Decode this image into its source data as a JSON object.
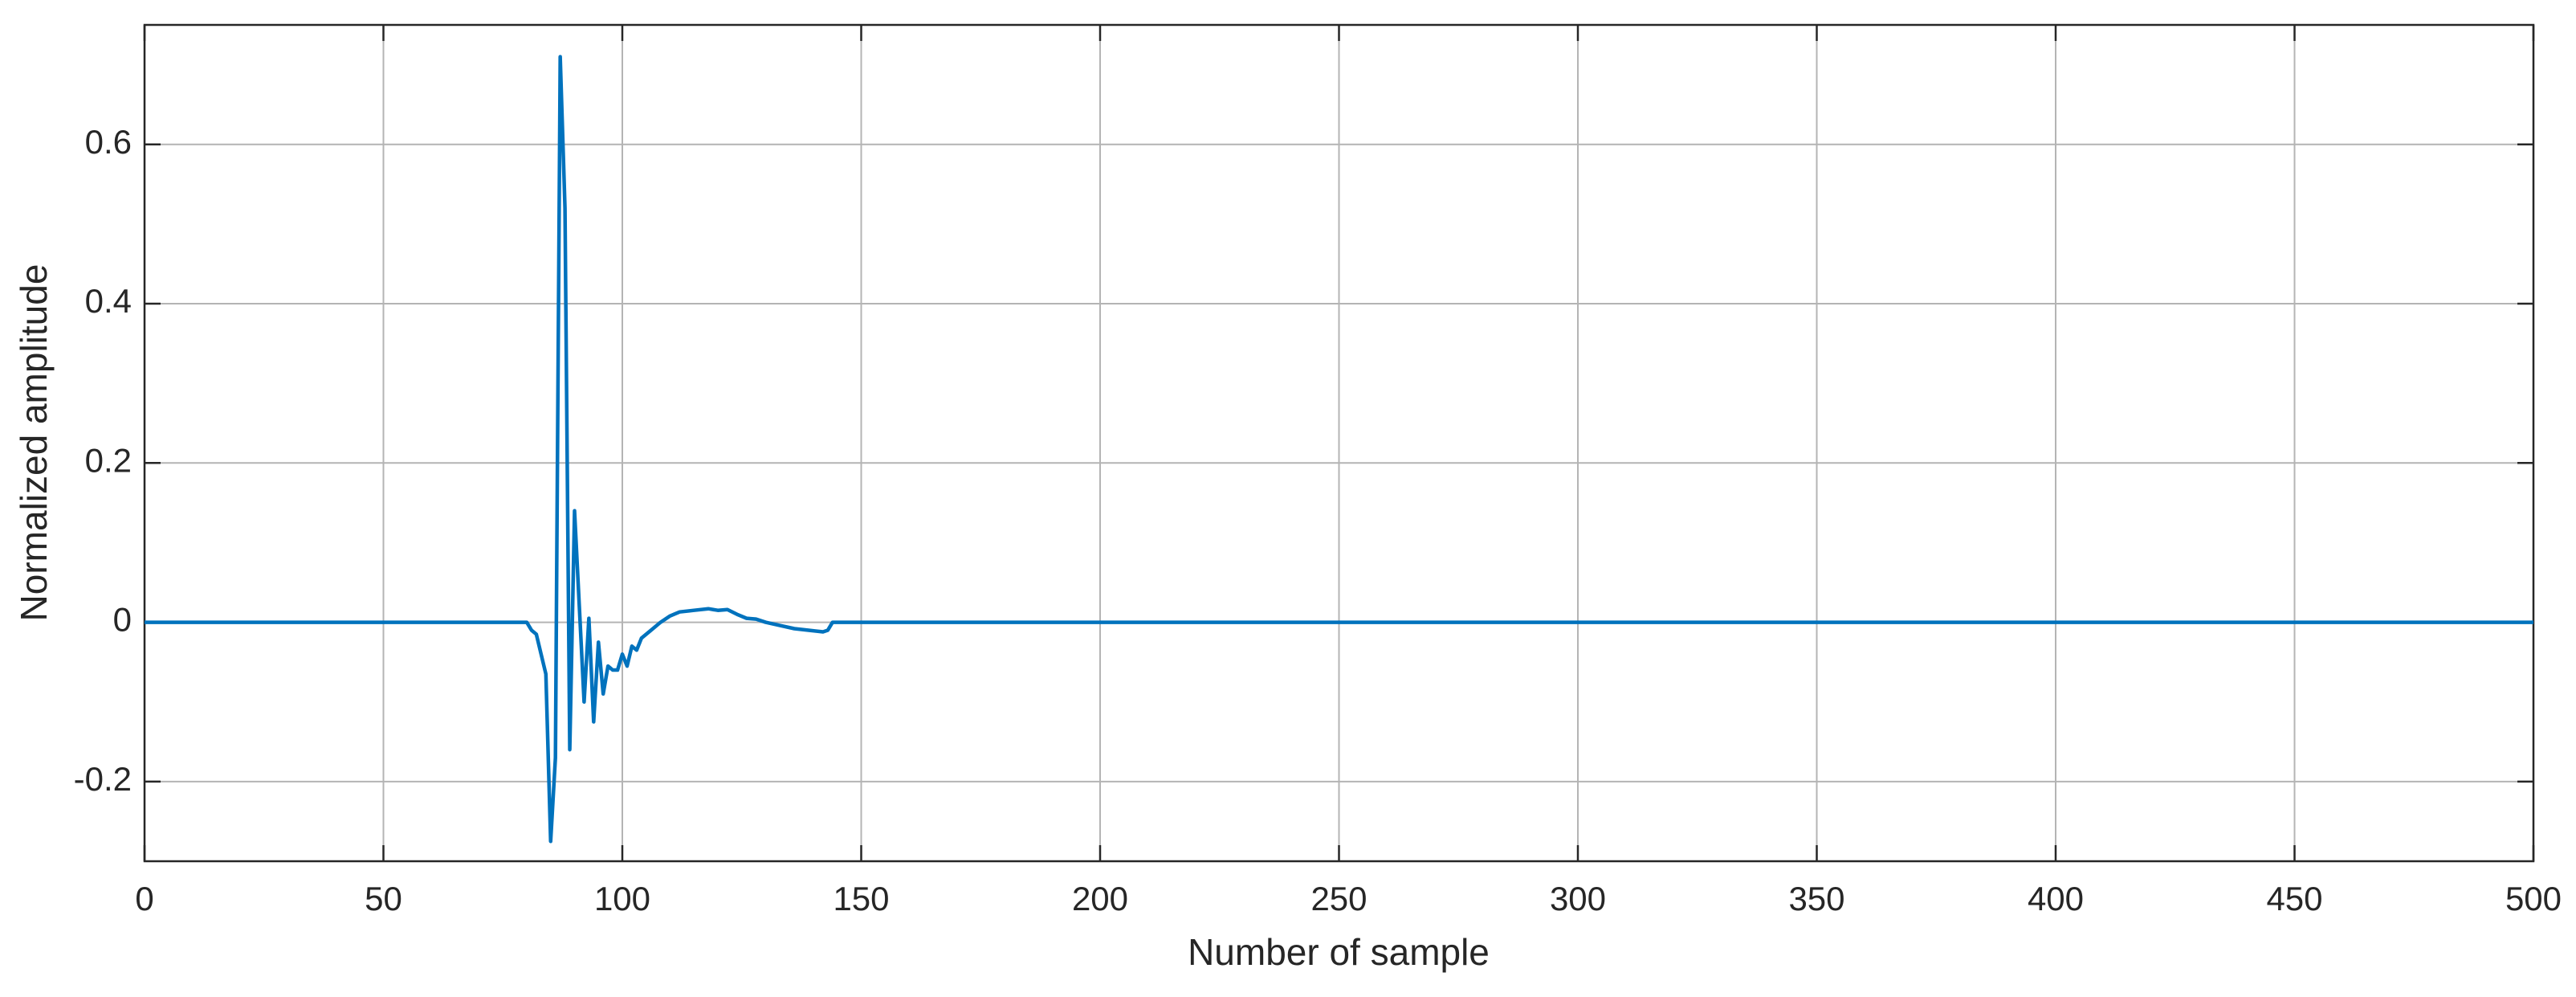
{
  "chart_data": {
    "type": "line",
    "x_label": "Number of sample",
    "y_label": "Normalized amplitude",
    "x": [
      0,
      79,
      80,
      81,
      82,
      83,
      84,
      85,
      86,
      87,
      88,
      89,
      90,
      91,
      92,
      93,
      94,
      95,
      96,
      97,
      98,
      99,
      100,
      101,
      102,
      103,
      104,
      106,
      108,
      110,
      112,
      115,
      118,
      120,
      122,
      124,
      126,
      128,
      130,
      133,
      136,
      139,
      142,
      143,
      144,
      145,
      500
    ],
    "series": [
      {
        "color": "#0072bd",
        "values": [
          0,
          0,
          0,
          -0.01,
          -0.015,
          -0.04,
          -0.065,
          -0.275,
          -0.17,
          0.71,
          0.52,
          -0.16,
          0.14,
          0.02,
          -0.1,
          0.005,
          -0.125,
          -0.025,
          -0.09,
          -0.055,
          -0.06,
          -0.06,
          -0.04,
          -0.055,
          -0.03,
          -0.035,
          -0.02,
          -0.01,
          0,
          0.008,
          0.013,
          0.015,
          0.017,
          0.015,
          0.016,
          0.01,
          0.005,
          0.004,
          0,
          -0.004,
          -0.008,
          -0.01,
          -0.012,
          -0.01,
          0,
          0,
          0
        ]
      }
    ],
    "xlim": [
      0,
      500
    ],
    "xticks": [
      0,
      50,
      100,
      150,
      200,
      250,
      300,
      350,
      400,
      450,
      500
    ],
    "ylim": [
      -0.3,
      0.75
    ],
    "yticks": [
      -0.2,
      0,
      0.2,
      0.4,
      0.6
    ],
    "grid": true
  }
}
